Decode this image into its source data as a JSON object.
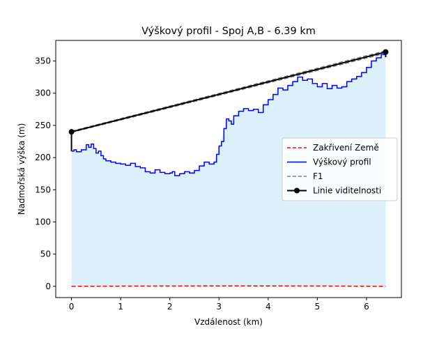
{
  "chart_data": {
    "type": "line",
    "title": "Výškový profil - Spoj A,B - 6.39 km",
    "xlabel": "Vzdálenost (km)",
    "ylabel": "Nadmořská výška (m)",
    "xlim": [
      -0.32,
      6.71
    ],
    "ylim": [
      -17.5,
      382
    ],
    "x_ticks": [
      0,
      1,
      2,
      3,
      4,
      5,
      6
    ],
    "y_ticks": [
      0,
      50,
      100,
      150,
      200,
      250,
      300,
      350
    ],
    "grid": false,
    "legend_position": "center-right",
    "colors": {
      "earth_curvature": "#ff0000",
      "elevation_profile": "#0000ff",
      "fill": "#87ceeb",
      "fresnel": "#808080",
      "line_of_sight": "#000000"
    },
    "series": [
      {
        "name": "Zakřivení Země",
        "style": "dashed",
        "x": [
          0,
          1,
          2,
          3,
          4,
          5,
          6,
          6.39
        ],
        "y": [
          0,
          0.3,
          0.5,
          0.6,
          0.6,
          0.5,
          0.2,
          0
        ]
      },
      {
        "name": "Výškový profil",
        "style": "solid",
        "x": [
          0,
          0.05,
          0.1,
          0.2,
          0.3,
          0.35,
          0.4,
          0.45,
          0.5,
          0.55,
          0.6,
          0.65,
          0.7,
          0.8,
          0.9,
          1.0,
          1.1,
          1.2,
          1.3,
          1.4,
          1.5,
          1.6,
          1.7,
          1.8,
          1.9,
          2.0,
          2.05,
          2.1,
          2.2,
          2.3,
          2.4,
          2.5,
          2.6,
          2.7,
          2.8,
          2.9,
          2.95,
          3.0,
          3.05,
          3.1,
          3.15,
          3.2,
          3.25,
          3.3,
          3.4,
          3.5,
          3.6,
          3.7,
          3.8,
          3.9,
          4.0,
          4.1,
          4.2,
          4.3,
          4.4,
          4.5,
          4.6,
          4.7,
          4.8,
          4.9,
          5.0,
          5.1,
          5.2,
          5.3,
          5.4,
          5.5,
          5.6,
          5.7,
          5.8,
          5.9,
          6.0,
          6.1,
          6.2,
          6.3,
          6.39
        ],
        "y": [
          210,
          212,
          209,
          212,
          220,
          216,
          221,
          214,
          207,
          210,
          203,
          198,
          195,
          193,
          191,
          190,
          188,
          191,
          186,
          184,
          178,
          176,
          181,
          177,
          175,
          176,
          178,
          172,
          175,
          178,
          176,
          180,
          187,
          193,
          190,
          193,
          205,
          218,
          225,
          245,
          260,
          257,
          252,
          265,
          272,
          276,
          273,
          275,
          270,
          282,
          290,
          298,
          308,
          305,
          312,
          318,
          325,
          320,
          322,
          315,
          310,
          315,
          307,
          312,
          308,
          310,
          318,
          322,
          326,
          332,
          340,
          350,
          355,
          360,
          356
        ]
      },
      {
        "name": "F1",
        "style": "dashed",
        "x": [
          0,
          6.39
        ],
        "y_upper": [
          241,
          366
        ],
        "y_lower": [
          239,
          362
        ]
      },
      {
        "name": "Linie viditelnosti",
        "style": "solid-markers",
        "x": [
          0,
          6.39
        ],
        "y": [
          240,
          364
        ],
        "end_x": 6.39,
        "end_y": 356
      }
    ]
  }
}
